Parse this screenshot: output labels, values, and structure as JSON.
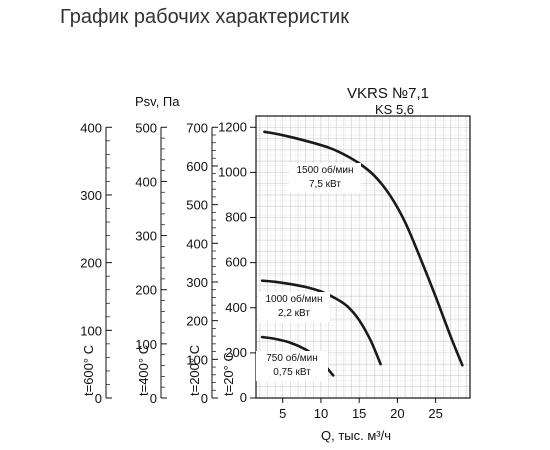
{
  "header": {
    "title": "График рабочих характеристик"
  },
  "chart_data": {
    "type": "line",
    "model": "VKRS №7,1",
    "model_sub": "KS 5,6",
    "xlabel": "Q, тыс. м³/ч",
    "ylabel": "Psv, Па",
    "xlim": [
      1.5,
      29.5
    ],
    "ylim": [
      0,
      1250
    ],
    "x_ticks": [
      5,
      10,
      15,
      20,
      25
    ],
    "y_ticks": [
      0,
      200,
      400,
      600,
      800,
      1000,
      1200
    ],
    "grid": true,
    "temp_axes": [
      {
        "label": "t=600° C",
        "max": 400,
        "ticks": [
          0,
          100,
          200,
          300,
          400
        ]
      },
      {
        "label": "t=400° C",
        "max": 500,
        "ticks": [
          0,
          100,
          200,
          300,
          400,
          500
        ]
      },
      {
        "label": "t=200° C",
        "max": 700,
        "ticks": [
          0,
          100,
          200,
          300,
          400,
          500,
          600,
          700
        ]
      },
      {
        "label": "t=20° C",
        "max": 1200,
        "ticks": []
      }
    ],
    "series": [
      {
        "name": "1500 об/мин",
        "power": "7,5 кВт",
        "x": [
          2.6,
          5,
          8,
          11,
          13,
          15,
          17,
          19,
          21,
          23,
          25,
          27,
          28.5
        ],
        "y": [
          1180,
          1165,
          1140,
          1110,
          1080,
          1040,
          985,
          900,
          780,
          620,
          450,
          270,
          145
        ]
      },
      {
        "name": "1000 об/мин",
        "power": "2,2 кВт",
        "x": [
          2.3,
          4,
          6,
          8,
          10,
          12,
          13.5,
          15,
          16.5,
          17.8
        ],
        "y": [
          520,
          515,
          505,
          492,
          472,
          440,
          405,
          345,
          255,
          150
        ]
      },
      {
        "name": "750 об/мин",
        "power": "0,75 кВт",
        "x": [
          2.3,
          4,
          6,
          8,
          9.5,
          10.6,
          11.6
        ],
        "y": [
          270,
          262,
          245,
          215,
          180,
          140,
          100
        ]
      }
    ]
  }
}
